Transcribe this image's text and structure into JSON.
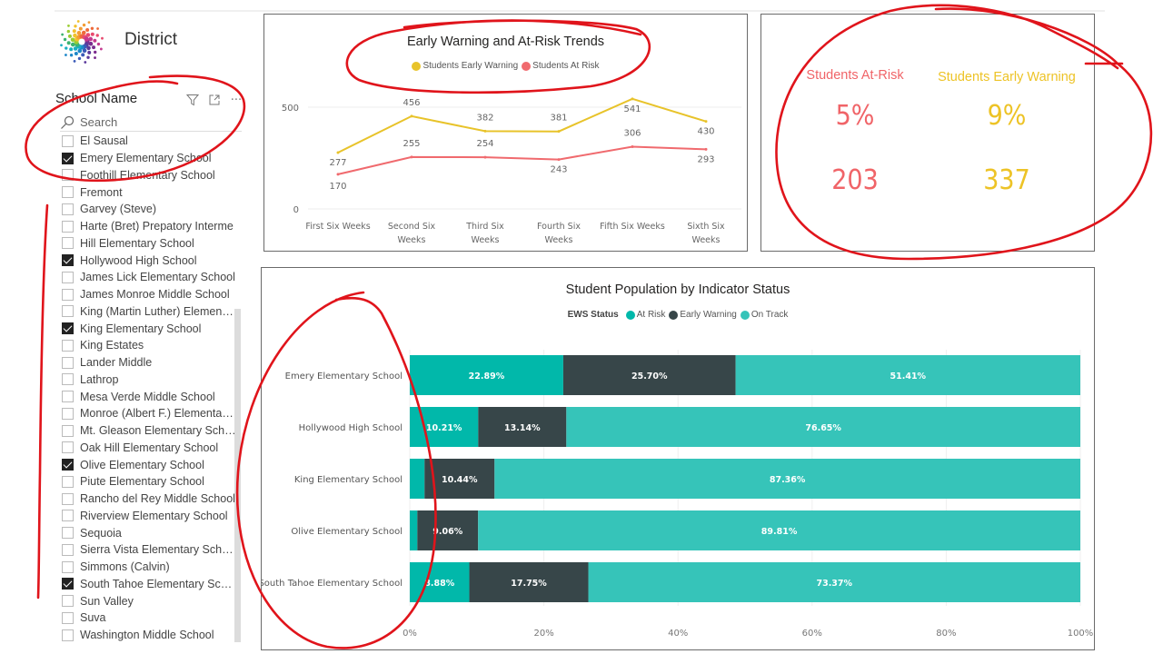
{
  "header": {
    "logo_icon": "pinwheel-dots-logo",
    "district_label": "District"
  },
  "slicer": {
    "title": "School Name",
    "icons": [
      "filter-icon",
      "focus-mode-icon",
      "more-options-icon"
    ],
    "more_glyph": "···",
    "search_placeholder": "Search",
    "items": [
      {
        "label": "El Sausal",
        "checked": false
      },
      {
        "label": "Emery Elementary School",
        "checked": true
      },
      {
        "label": "Foothill Elementary School",
        "checked": false
      },
      {
        "label": "Fremont",
        "checked": false
      },
      {
        "label": "Garvey (Steve)",
        "checked": false
      },
      {
        "label": "Harte (Bret) Prepatory Interme",
        "checked": false
      },
      {
        "label": "Hill Elementary School",
        "checked": false
      },
      {
        "label": "Hollywood High School",
        "checked": true
      },
      {
        "label": "James Lick Elementary School",
        "checked": false
      },
      {
        "label": "James Monroe Middle School",
        "checked": false
      },
      {
        "label": "King (Martin Luther) Elementar...",
        "checked": false
      },
      {
        "label": "King Elementary School",
        "checked": true
      },
      {
        "label": "King Estates",
        "checked": false
      },
      {
        "label": "Lander Middle",
        "checked": false
      },
      {
        "label": "Lathrop",
        "checked": false
      },
      {
        "label": "Mesa Verde Middle School",
        "checked": false
      },
      {
        "label": "Monroe (Albert F.) Elementary ...",
        "checked": false
      },
      {
        "label": "Mt. Gleason Elementary School",
        "checked": false
      },
      {
        "label": "Oak Hill Elementary School",
        "checked": false
      },
      {
        "label": "Olive Elementary School",
        "checked": true
      },
      {
        "label": "Piute Elementary School",
        "checked": false
      },
      {
        "label": "Rancho del Rey Middle School",
        "checked": false
      },
      {
        "label": "Riverview Elementary School",
        "checked": false
      },
      {
        "label": "Sequoia",
        "checked": false
      },
      {
        "label": "Sierra Vista Elementary School",
        "checked": false
      },
      {
        "label": "Simmons (Calvin)",
        "checked": false
      },
      {
        "label": "South Tahoe Elementary School",
        "checked": true
      },
      {
        "label": "Sun Valley",
        "checked": false
      },
      {
        "label": "Suva",
        "checked": false
      },
      {
        "label": "Washington Middle School",
        "checked": false
      }
    ]
  },
  "kpis": {
    "at_risk": {
      "label": "Students At-Risk",
      "percent": "5%",
      "count": "203",
      "color": "#F06468"
    },
    "early_warning": {
      "label": "Students Early Warning",
      "percent": "9%",
      "count": "337",
      "color": "#EDC326"
    }
  },
  "colors": {
    "early_warning_line": "#E8C32A",
    "at_risk_line": "#F06A6E",
    "bar_at_risk": "#01B8AA",
    "bar_early_warning": "#374649",
    "bar_on_track": "#36C4B9",
    "annotation_ink": "#E0141B"
  },
  "chart_data": [
    {
      "type": "line",
      "title": "Early Warning and At-Risk Trends",
      "categories": [
        [
          "First Six Weeks"
        ],
        [
          "Second Six",
          "Weeks"
        ],
        [
          "Third Six",
          "Weeks"
        ],
        [
          "Fourth Six",
          "Weeks"
        ],
        [
          "Fifth Six Weeks"
        ],
        [
          "Sixth Six",
          "Weeks"
        ]
      ],
      "series": [
        {
          "name": "Students Early Warning",
          "values": [
            277,
            456,
            382,
            381,
            541,
            430
          ]
        },
        {
          "name": "Students At Risk",
          "values": [
            170,
            255,
            254,
            243,
            306,
            293
          ]
        }
      ],
      "yticks": [
        0,
        500
      ],
      "ylim": [
        0,
        560
      ],
      "grid": true,
      "legend": "top-center"
    },
    {
      "type": "bar",
      "stacked": "100%",
      "orientation": "horizontal",
      "title": "Student Population by Indicator Status",
      "legend_title": "EWS Status",
      "legend": "top-center",
      "categories": [
        "Emery Elementary School",
        "Hollywood High School",
        "King Elementary School",
        "Olive Elementary School",
        "South Tahoe Elementary School"
      ],
      "series": [
        {
          "name": "At Risk",
          "values": [
            22.89,
            10.21,
            2.2,
            1.13,
            8.88
          ],
          "labels": [
            "22.89%",
            "10.21%",
            "",
            "",
            "8.88%"
          ]
        },
        {
          "name": "Early Warning",
          "values": [
            25.7,
            13.14,
            10.44,
            9.06,
            17.75
          ],
          "labels": [
            "25.70%",
            "13.14%",
            "10.44%",
            "9.06%",
            "17.75%"
          ]
        },
        {
          "name": "On Track",
          "values": [
            51.41,
            76.65,
            87.36,
            89.81,
            73.37
          ],
          "labels": [
            "51.41%",
            "76.65%",
            "87.36%",
            "89.81%",
            "73.37%"
          ]
        }
      ],
      "xticks": [
        "0%",
        "20%",
        "40%",
        "60%",
        "80%",
        "100%"
      ],
      "xlim": [
        0,
        100
      ],
      "grid": true
    }
  ]
}
